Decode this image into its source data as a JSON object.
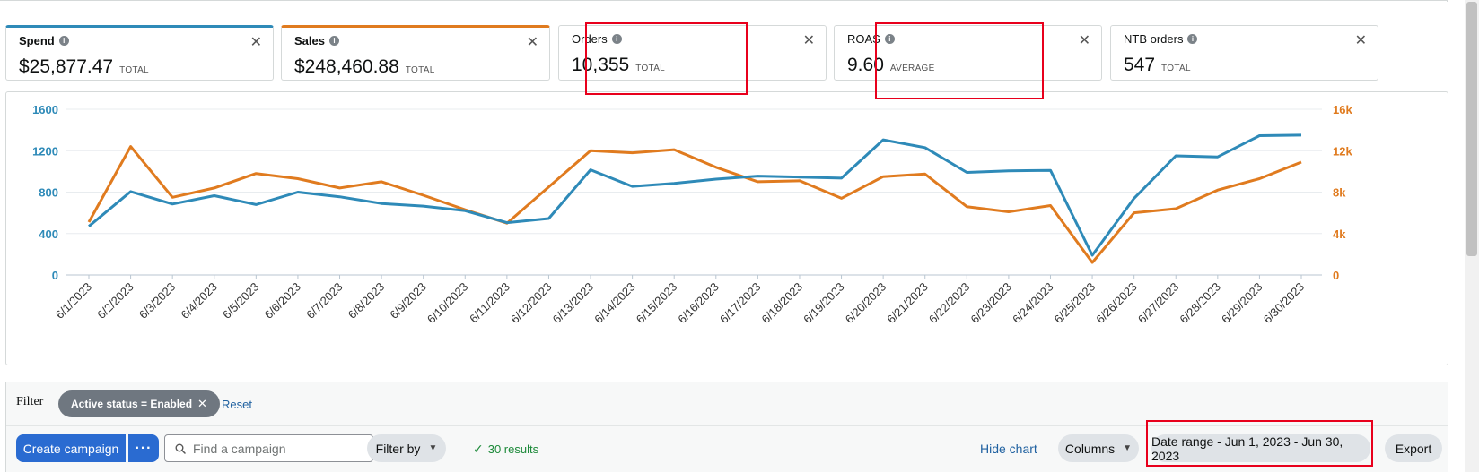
{
  "metrics": [
    {
      "name": "Spend",
      "value": "$25,877.47",
      "qualifier": "TOTAL"
    },
    {
      "name": "Sales",
      "value": "$248,460.88",
      "qualifier": "TOTAL"
    },
    {
      "name": "Orders",
      "value": "10,355",
      "qualifier": "TOTAL"
    },
    {
      "name": "ROAS",
      "value": "9.60",
      "qualifier": "AVERAGE"
    },
    {
      "name": "NTB orders",
      "value": "547",
      "qualifier": "TOTAL"
    }
  ],
  "colors": {
    "spend": "#2e8ab8",
    "sales": "#e07b1f",
    "highlight": "#e8001c",
    "primary_button": "#2a6bd1"
  },
  "chart_data": {
    "type": "line",
    "x": [
      "6/1/2023",
      "6/2/2023",
      "6/3/2023",
      "6/4/2023",
      "6/5/2023",
      "6/6/2023",
      "6/7/2023",
      "6/8/2023",
      "6/9/2023",
      "6/10/2023",
      "6/11/2023",
      "6/12/2023",
      "6/13/2023",
      "6/14/2023",
      "6/15/2023",
      "6/16/2023",
      "6/17/2023",
      "6/18/2023",
      "6/19/2023",
      "6/20/2023",
      "6/21/2023",
      "6/22/2023",
      "6/23/2023",
      "6/24/2023",
      "6/25/2023",
      "6/26/2023",
      "6/27/2023",
      "6/28/2023",
      "6/29/2023",
      "6/30/2023"
    ],
    "series": [
      {
        "name": "Spend",
        "axis": "left",
        "values": [
          470,
          805,
          685,
          765,
          680,
          800,
          755,
          690,
          665,
          620,
          505,
          545,
          1015,
          855,
          885,
          925,
          955,
          945,
          935,
          1305,
          1230,
          990,
          1005,
          1010,
          190,
          740,
          1150,
          1140,
          1345,
          1350
        ]
      },
      {
        "name": "Sales",
        "axis": "right",
        "values": [
          5100,
          12400,
          7500,
          8400,
          9800,
          9300,
          8400,
          9000,
          7700,
          6300,
          5000,
          8500,
          12000,
          11800,
          12100,
          10400,
          9000,
          9100,
          7400,
          9500,
          9750,
          6600,
          6100,
          6700,
          1200,
          6000,
          6400,
          8200,
          9300,
          10900
        ]
      }
    ],
    "yticks_left": [
      "0",
      "400",
      "800",
      "1200",
      "1600"
    ],
    "yticks_right": [
      "0",
      "4k",
      "8k",
      "12k",
      "16k"
    ],
    "ylim_left": [
      0,
      1600
    ],
    "ylim_right": [
      0,
      16000
    ],
    "grid": true
  },
  "filter": {
    "label": "Filter",
    "chip": "Active status = Enabled",
    "reset": "Reset"
  },
  "toolbar": {
    "create_campaign": "Create campaign",
    "more": "···",
    "search_placeholder": "Find a campaign",
    "filter_by": "Filter by",
    "results": "30 results",
    "hide_chart": "Hide chart",
    "columns": "Columns",
    "date_range": "Date range - Jun 1, 2023 - Jun 30, 2023",
    "export": "Export"
  }
}
